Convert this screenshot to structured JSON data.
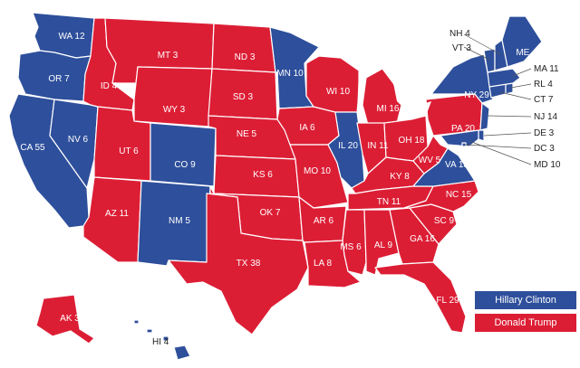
{
  "colors": {
    "clinton": "#2e4f9b",
    "trump": "#dc1e35",
    "water": "#ffffff"
  },
  "legend": {
    "clinton": "Hillary Clinton",
    "trump": "Donald Trump"
  },
  "states": [
    {
      "abbr": "WA",
      "ev": 12,
      "label": "WA 12",
      "winner": "clinton"
    },
    {
      "abbr": "OR",
      "ev": 7,
      "label": "OR 7",
      "winner": "clinton"
    },
    {
      "abbr": "CA",
      "ev": 55,
      "label": "CA 55",
      "winner": "clinton"
    },
    {
      "abbr": "NV",
      "ev": 6,
      "label": "NV 6",
      "winner": "clinton"
    },
    {
      "abbr": "ID",
      "ev": 4,
      "label": "ID 4",
      "winner": "trump"
    },
    {
      "abbr": "MT",
      "ev": 3,
      "label": "MT 3",
      "winner": "trump"
    },
    {
      "abbr": "WY",
      "ev": 3,
      "label": "WY 3",
      "winner": "trump"
    },
    {
      "abbr": "UT",
      "ev": 6,
      "label": "UT 6",
      "winner": "trump"
    },
    {
      "abbr": "AZ",
      "ev": 11,
      "label": "AZ 11",
      "winner": "trump"
    },
    {
      "abbr": "CO",
      "ev": 9,
      "label": "CO 9",
      "winner": "clinton"
    },
    {
      "abbr": "NM",
      "ev": 5,
      "label": "NM 5",
      "winner": "clinton"
    },
    {
      "abbr": "ND",
      "ev": 3,
      "label": "ND 3",
      "winner": "trump"
    },
    {
      "abbr": "SD",
      "ev": 3,
      "label": "SD 3",
      "winner": "trump"
    },
    {
      "abbr": "NE",
      "ev": 5,
      "label": "NE 5",
      "winner": "trump"
    },
    {
      "abbr": "KS",
      "ev": 6,
      "label": "KS 6",
      "winner": "trump"
    },
    {
      "abbr": "OK",
      "ev": 7,
      "label": "OK 7",
      "winner": "trump"
    },
    {
      "abbr": "TX",
      "ev": 38,
      "label": "TX 38",
      "winner": "trump"
    },
    {
      "abbr": "MN",
      "ev": 10,
      "label": "MN 10",
      "winner": "clinton"
    },
    {
      "abbr": "IA",
      "ev": 6,
      "label": "IA 6",
      "winner": "trump"
    },
    {
      "abbr": "MO",
      "ev": 10,
      "label": "MO 10",
      "winner": "trump"
    },
    {
      "abbr": "AR",
      "ev": 6,
      "label": "AR 6",
      "winner": "trump"
    },
    {
      "abbr": "LA",
      "ev": 8,
      "label": "LA 8",
      "winner": "trump"
    },
    {
      "abbr": "WI",
      "ev": 10,
      "label": "WI 10",
      "winner": "trump"
    },
    {
      "abbr": "IL",
      "ev": 20,
      "label": "IL 20",
      "winner": "clinton"
    },
    {
      "abbr": "MI",
      "ev": 16,
      "label": "MI 16",
      "winner": "trump"
    },
    {
      "abbr": "IN",
      "ev": 11,
      "label": "IN 11",
      "winner": "trump"
    },
    {
      "abbr": "OH",
      "ev": 18,
      "label": "OH 18",
      "winner": "trump"
    },
    {
      "abbr": "KY",
      "ev": 8,
      "label": "KY 8",
      "winner": "trump"
    },
    {
      "abbr": "TN",
      "ev": 11,
      "label": "TN 11",
      "winner": "trump"
    },
    {
      "abbr": "MS",
      "ev": 6,
      "label": "MS 6",
      "winner": "trump"
    },
    {
      "abbr": "AL",
      "ev": 9,
      "label": "AL 9",
      "winner": "trump"
    },
    {
      "abbr": "GA",
      "ev": 16,
      "label": "GA 16",
      "winner": "trump"
    },
    {
      "abbr": "FL",
      "ev": 29,
      "label": "FL 29",
      "winner": "trump"
    },
    {
      "abbr": "SC",
      "ev": 9,
      "label": "SC 9",
      "winner": "trump"
    },
    {
      "abbr": "NC",
      "ev": 15,
      "label": "NC 15",
      "winner": "trump"
    },
    {
      "abbr": "VA",
      "ev": 13,
      "label": "VA 13",
      "winner": "clinton"
    },
    {
      "abbr": "WV",
      "ev": 5,
      "label": "WV 5",
      "winner": "trump"
    },
    {
      "abbr": "PA",
      "ev": 20,
      "label": "PA 20",
      "winner": "trump"
    },
    {
      "abbr": "NY",
      "ev": 29,
      "label": "NY 29",
      "winner": "clinton"
    },
    {
      "abbr": "ME",
      "ev": 4,
      "label": "ME 4",
      "winner": "clinton"
    },
    {
      "abbr": "NH",
      "ev": 4,
      "label": "NH 4",
      "winner": "clinton"
    },
    {
      "abbr": "VT",
      "ev": 3,
      "label": "VT 3",
      "winner": "clinton"
    },
    {
      "abbr": "MA",
      "ev": 11,
      "label": "MA 11",
      "winner": "clinton"
    },
    {
      "abbr": "RI",
      "ev": 4,
      "label": "RL 4",
      "winner": "clinton"
    },
    {
      "abbr": "CT",
      "ev": 7,
      "label": "CT 7",
      "winner": "clinton"
    },
    {
      "abbr": "NJ",
      "ev": 14,
      "label": "NJ 14",
      "winner": "clinton"
    },
    {
      "abbr": "DE",
      "ev": 3,
      "label": "DE 3",
      "winner": "clinton"
    },
    {
      "abbr": "DC",
      "ev": 3,
      "label": "DC 3",
      "winner": "clinton"
    },
    {
      "abbr": "MD",
      "ev": 10,
      "label": "MD 10",
      "winner": "clinton"
    },
    {
      "abbr": "AK",
      "ev": 3,
      "label": "AK 3",
      "winner": "trump"
    },
    {
      "abbr": "HI",
      "ev": 4,
      "label": "HI 4",
      "winner": "clinton"
    }
  ]
}
